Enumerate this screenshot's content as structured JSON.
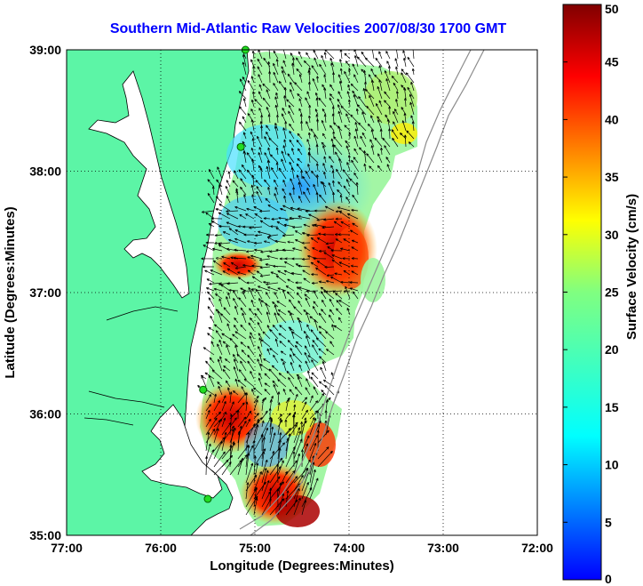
{
  "title": "Southern Mid-Atlantic Raw Velocities 2007/08/30 1700 GMT",
  "axes": {
    "xlabel": "Longitude (Degrees:Minutes)",
    "ylabel": "Latitude (Degrees:Minutes)",
    "xticks": [
      "77:00",
      "76:00",
      "75:00",
      "74:00",
      "73:00",
      "72:00"
    ],
    "yticks": [
      "39:00",
      "38:00",
      "37:00",
      "36:00",
      "35:00"
    ],
    "xlim_deg_west": [
      77,
      72
    ],
    "ylim_deg_north": [
      35,
      39
    ],
    "grid": "dotted"
  },
  "colorbar": {
    "label": "Surface Velocity (cm/s)",
    "ticks": [
      "50",
      "45",
      "40",
      "35",
      "30",
      "25",
      "20",
      "15",
      "10",
      "5",
      "0"
    ],
    "range": [
      0,
      50
    ],
    "colormap": "jet"
  },
  "colors": {
    "land": "#5cf5a6",
    "coastline": "#000000",
    "bathymetry": "#8c8c8c",
    "station": "#22dd22",
    "title": "#0000ff"
  },
  "stations": [
    {
      "lon": -75.1,
      "lat": 39.0
    },
    {
      "lon": -75.15,
      "lat": 38.2
    },
    {
      "lon": -75.55,
      "lat": 36.2
    },
    {
      "lon": -75.5,
      "lat": 35.3
    }
  ]
}
